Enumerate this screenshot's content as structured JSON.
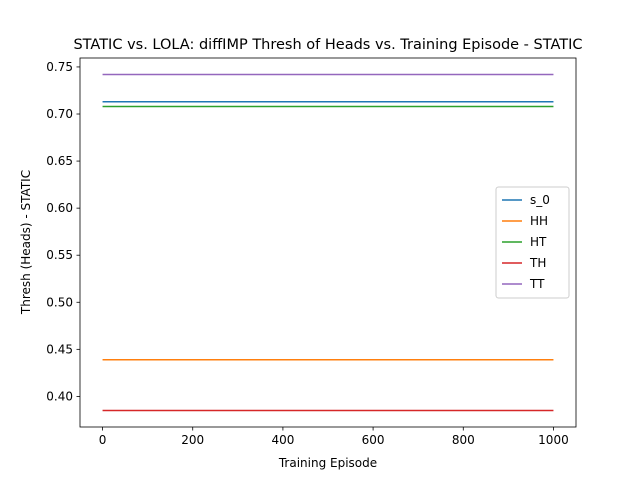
{
  "chart_data": {
    "type": "line",
    "title": "STATIC vs. LOLA: diffIMP Thresh of Heads vs. Training Episode - STATIC",
    "xlabel": "Training Episode",
    "ylabel": "Thresh (Heads) - STATIC",
    "xlim": [
      -50,
      1050
    ],
    "ylim": [
      0.3675,
      0.7595
    ],
    "xticks": [
      0,
      200,
      400,
      600,
      800,
      1000
    ],
    "xtick_labels": [
      "0",
      "200",
      "400",
      "600",
      "800",
      "1000"
    ],
    "yticks": [
      0.4,
      0.45,
      0.5,
      0.55,
      0.6,
      0.65,
      0.7,
      0.75
    ],
    "ytick_labels": [
      "0.40",
      "0.45",
      "0.50",
      "0.55",
      "0.60",
      "0.65",
      "0.70",
      "0.75"
    ],
    "grid": false,
    "legend_position": "center-right",
    "x": [
      0,
      1000
    ],
    "series": [
      {
        "name": "s_0",
        "color": "#1f77b4",
        "values": [
          0.713,
          0.713
        ]
      },
      {
        "name": "HH",
        "color": "#ff7f0e",
        "values": [
          0.439,
          0.439
        ]
      },
      {
        "name": "HT",
        "color": "#2ca02c",
        "values": [
          0.708,
          0.708
        ]
      },
      {
        "name": "TH",
        "color": "#d62728",
        "values": [
          0.385,
          0.385
        ]
      },
      {
        "name": "TT",
        "color": "#9467bd",
        "values": [
          0.742,
          0.742
        ]
      }
    ]
  }
}
